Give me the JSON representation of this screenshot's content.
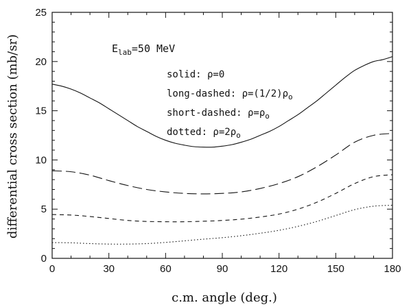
{
  "chart_data": {
    "type": "line",
    "title": "",
    "xlabel": "c.m. angle (deg.)",
    "ylabel": "differential cross section (mb/sr)",
    "xlim": [
      0,
      180
    ],
    "ylim": [
      0,
      25
    ],
    "xticks": [
      0,
      30,
      60,
      90,
      120,
      150,
      180
    ],
    "yticks": [
      0,
      5,
      10,
      15,
      20,
      25
    ],
    "grid": false,
    "annotations": {
      "energy": {
        "main": "E",
        "sub": "lab",
        "rest": "=50 MeV"
      },
      "solid": {
        "text": "solid: ρ=0"
      },
      "long_dashed": {
        "text": "long-dashed: ρ=(1/2)ρ",
        "sub": "o"
      },
      "short_dashed": {
        "text": "short-dashed: ρ=ρ",
        "sub": "o"
      },
      "dotted": {
        "text": "dotted: ρ=2ρ",
        "sub": "o"
      }
    },
    "series": [
      {
        "style": "solid",
        "x": [
          0,
          5,
          10,
          15,
          20,
          25,
          30,
          35,
          40,
          45,
          50,
          55,
          60,
          65,
          70,
          75,
          80,
          85,
          90,
          95,
          100,
          105,
          110,
          115,
          120,
          125,
          130,
          135,
          140,
          145,
          150,
          155,
          160,
          165,
          170,
          175,
          180
        ],
        "y": [
          17.7,
          17.5,
          17.2,
          16.8,
          16.3,
          15.8,
          15.2,
          14.6,
          14.0,
          13.4,
          12.9,
          12.4,
          12.0,
          11.7,
          11.5,
          11.35,
          11.3,
          11.3,
          11.4,
          11.55,
          11.8,
          12.1,
          12.5,
          12.9,
          13.4,
          14.0,
          14.6,
          15.3,
          16.0,
          16.8,
          17.6,
          18.4,
          19.1,
          19.6,
          20.0,
          20.2,
          20.5
        ]
      },
      {
        "style": "long-dashed",
        "x": [
          0,
          10,
          20,
          30,
          40,
          50,
          60,
          70,
          80,
          90,
          100,
          110,
          120,
          130,
          140,
          150,
          160,
          170,
          180
        ],
        "y": [
          8.9,
          8.8,
          8.45,
          7.9,
          7.4,
          7.0,
          6.75,
          6.6,
          6.55,
          6.6,
          6.75,
          7.1,
          7.6,
          8.3,
          9.3,
          10.5,
          11.8,
          12.5,
          12.7
        ]
      },
      {
        "style": "short-dashed",
        "x": [
          0,
          10,
          20,
          30,
          40,
          50,
          60,
          70,
          80,
          90,
          100,
          110,
          120,
          130,
          140,
          150,
          160,
          170,
          180
        ],
        "y": [
          4.45,
          4.4,
          4.25,
          4.05,
          3.85,
          3.75,
          3.72,
          3.72,
          3.77,
          3.85,
          3.98,
          4.2,
          4.5,
          5.0,
          5.7,
          6.6,
          7.6,
          8.3,
          8.5
        ]
      },
      {
        "style": "dotted",
        "x": [
          0,
          10,
          20,
          30,
          40,
          50,
          60,
          70,
          80,
          90,
          100,
          110,
          120,
          130,
          140,
          150,
          160,
          170,
          180
        ],
        "y": [
          1.6,
          1.58,
          1.5,
          1.45,
          1.45,
          1.5,
          1.62,
          1.78,
          1.95,
          2.1,
          2.3,
          2.55,
          2.85,
          3.25,
          3.75,
          4.35,
          4.95,
          5.3,
          5.4
        ]
      }
    ]
  }
}
